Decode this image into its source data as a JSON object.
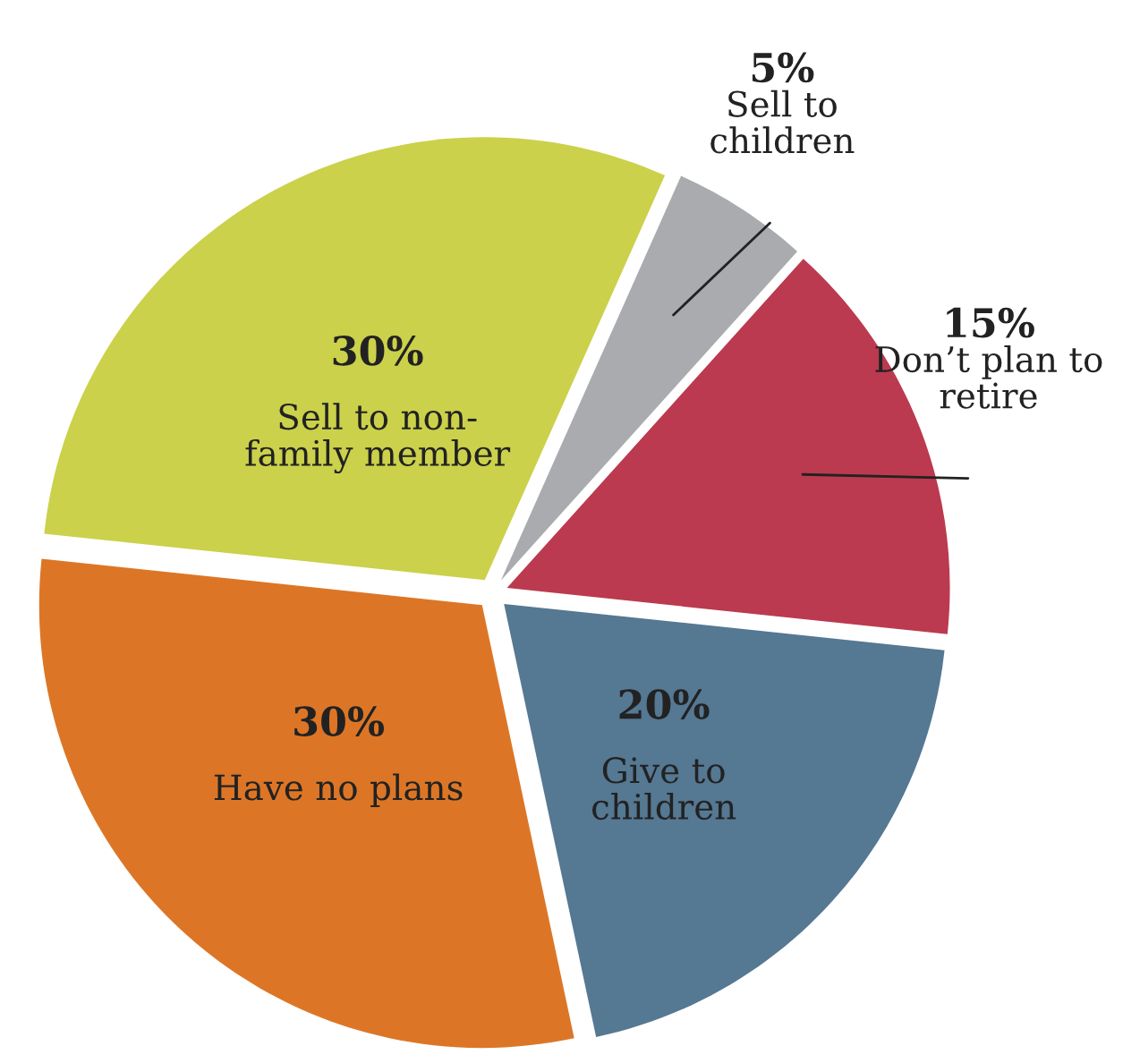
{
  "chart_data": {
    "type": "pie",
    "categories": [
      "Sell to\nchildren",
      "Don’t plan to\nretire",
      "Give to\nchildren",
      "Have no plans",
      "Sell to non-\nfamily member"
    ],
    "values": [
      5,
      15,
      20,
      30,
      30
    ],
    "value_labels": [
      "5%",
      "15%",
      "20%",
      "30%",
      "30%"
    ],
    "colors": [
      "#a9abae",
      "#bb3a4f",
      "#557893",
      "#dc7626",
      "#cbd14a"
    ]
  }
}
